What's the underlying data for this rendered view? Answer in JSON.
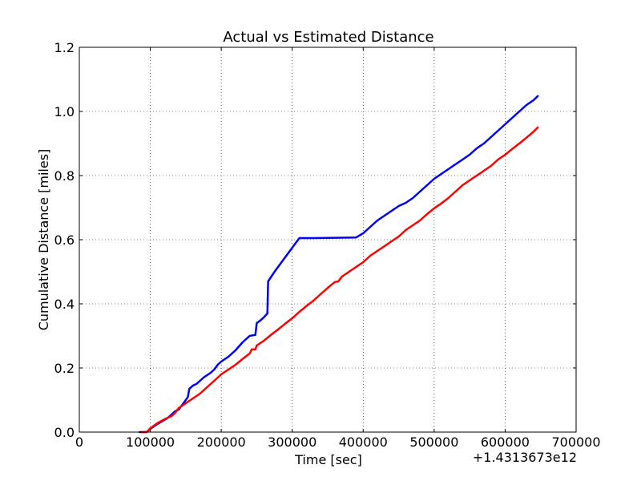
{
  "chart_data": {
    "type": "line",
    "title": "Actual vs Estimated Distance",
    "xlabel": "Time [sec]",
    "ylabel": "Cumulative Distance [miles]",
    "x_offset_label": "+1.4313673e12",
    "xlim": [
      0,
      700000
    ],
    "ylim": [
      0,
      1.2
    ],
    "xticks": [
      0,
      100000,
      200000,
      300000,
      400000,
      500000,
      600000,
      700000
    ],
    "xtick_labels": [
      "0",
      "100000",
      "200000",
      "300000",
      "400000",
      "500000",
      "600000",
      "700000"
    ],
    "yticks": [
      0,
      0.2,
      0.4,
      0.6,
      0.8,
      1.0,
      1.2
    ],
    "ytick_labels": [
      "0.0",
      "0.2",
      "0.4",
      "0.6",
      "0.8",
      "1.0",
      "1.2"
    ],
    "grid": true,
    "series": [
      {
        "color": "#0000ff",
        "points": [
          [
            85000,
            0.0
          ],
          [
            95000,
            0.0
          ],
          [
            100000,
            0.01
          ],
          [
            110000,
            0.025
          ],
          [
            120000,
            0.038
          ],
          [
            125000,
            0.045
          ],
          [
            130000,
            0.055
          ],
          [
            135000,
            0.065
          ],
          [
            140000,
            0.07
          ],
          [
            145000,
            0.085
          ],
          [
            150000,
            0.1
          ],
          [
            153000,
            0.11
          ],
          [
            155000,
            0.135
          ],
          [
            160000,
            0.145
          ],
          [
            165000,
            0.15
          ],
          [
            170000,
            0.16
          ],
          [
            175000,
            0.17
          ],
          [
            185000,
            0.185
          ],
          [
            190000,
            0.195
          ],
          [
            195000,
            0.21
          ],
          [
            200000,
            0.22
          ],
          [
            210000,
            0.235
          ],
          [
            220000,
            0.255
          ],
          [
            230000,
            0.28
          ],
          [
            235000,
            0.29
          ],
          [
            240000,
            0.3
          ],
          [
            245000,
            0.302
          ],
          [
            248000,
            0.303
          ],
          [
            250000,
            0.34
          ],
          [
            255000,
            0.348
          ],
          [
            260000,
            0.358
          ],
          [
            265000,
            0.37
          ],
          [
            266000,
            0.47
          ],
          [
            275000,
            0.5
          ],
          [
            285000,
            0.53
          ],
          [
            295000,
            0.56
          ],
          [
            305000,
            0.59
          ],
          [
            310000,
            0.605
          ],
          [
            330000,
            0.605
          ],
          [
            360000,
            0.606
          ],
          [
            390000,
            0.607
          ],
          [
            400000,
            0.62
          ],
          [
            410000,
            0.64
          ],
          [
            420000,
            0.66
          ],
          [
            430000,
            0.675
          ],
          [
            440000,
            0.69
          ],
          [
            450000,
            0.705
          ],
          [
            460000,
            0.715
          ],
          [
            470000,
            0.73
          ],
          [
            480000,
            0.75
          ],
          [
            490000,
            0.77
          ],
          [
            500000,
            0.79
          ],
          [
            510000,
            0.805
          ],
          [
            520000,
            0.82
          ],
          [
            530000,
            0.835
          ],
          [
            540000,
            0.85
          ],
          [
            550000,
            0.865
          ],
          [
            560000,
            0.885
          ],
          [
            570000,
            0.9
          ],
          [
            580000,
            0.92
          ],
          [
            590000,
            0.94
          ],
          [
            600000,
            0.96
          ],
          [
            610000,
            0.98
          ],
          [
            620000,
            1.0
          ],
          [
            630000,
            1.02
          ],
          [
            640000,
            1.035
          ],
          [
            646000,
            1.048
          ]
        ]
      },
      {
        "color": "#ff0000",
        "points": [
          [
            88000,
            0.0
          ],
          [
            95000,
            0.0
          ],
          [
            100000,
            0.012
          ],
          [
            110000,
            0.028
          ],
          [
            120000,
            0.04
          ],
          [
            130000,
            0.05
          ],
          [
            135000,
            0.06
          ],
          [
            140000,
            0.075
          ],
          [
            150000,
            0.09
          ],
          [
            160000,
            0.105
          ],
          [
            170000,
            0.12
          ],
          [
            180000,
            0.14
          ],
          [
            190000,
            0.16
          ],
          [
            200000,
            0.18
          ],
          [
            210000,
            0.195
          ],
          [
            220000,
            0.21
          ],
          [
            230000,
            0.228
          ],
          [
            240000,
            0.245
          ],
          [
            243000,
            0.258
          ],
          [
            248000,
            0.258
          ],
          [
            250000,
            0.27
          ],
          [
            260000,
            0.285
          ],
          [
            270000,
            0.303
          ],
          [
            280000,
            0.32
          ],
          [
            290000,
            0.338
          ],
          [
            300000,
            0.355
          ],
          [
            310000,
            0.375
          ],
          [
            320000,
            0.393
          ],
          [
            330000,
            0.41
          ],
          [
            340000,
            0.43
          ],
          [
            350000,
            0.45
          ],
          [
            360000,
            0.468
          ],
          [
            365000,
            0.47
          ],
          [
            370000,
            0.485
          ],
          [
            380000,
            0.5
          ],
          [
            390000,
            0.515
          ],
          [
            400000,
            0.53
          ],
          [
            410000,
            0.55
          ],
          [
            420000,
            0.565
          ],
          [
            430000,
            0.58
          ],
          [
            440000,
            0.595
          ],
          [
            450000,
            0.61
          ],
          [
            460000,
            0.63
          ],
          [
            470000,
            0.645
          ],
          [
            480000,
            0.66
          ],
          [
            490000,
            0.68
          ],
          [
            500000,
            0.698
          ],
          [
            510000,
            0.713
          ],
          [
            520000,
            0.73
          ],
          [
            530000,
            0.75
          ],
          [
            540000,
            0.77
          ],
          [
            550000,
            0.785
          ],
          [
            560000,
            0.8
          ],
          [
            570000,
            0.815
          ],
          [
            580000,
            0.83
          ],
          [
            590000,
            0.85
          ],
          [
            600000,
            0.865
          ],
          [
            610000,
            0.883
          ],
          [
            620000,
            0.9
          ],
          [
            630000,
            0.918
          ],
          [
            640000,
            0.937
          ],
          [
            646000,
            0.95
          ]
        ]
      }
    ]
  }
}
